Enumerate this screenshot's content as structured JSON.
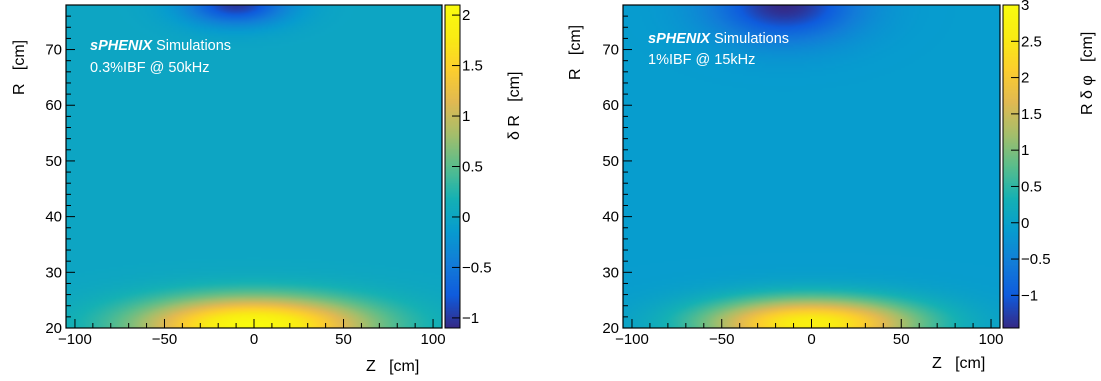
{
  "chart_data": [
    {
      "type": "heatmap",
      "title": "",
      "annotation_lines": [
        "sPHENIX Simulations",
        "0.3%IBF @ 50kHz"
      ],
      "annotation_bold": "sPHENIX",
      "annotation_rest": " Simulations",
      "xlabel": "Z   [cm]",
      "ylabel": "R   [cm]",
      "zlabel": "δ R   [cm]",
      "xlim": [
        -105,
        105
      ],
      "ylim": [
        20,
        78
      ],
      "zlim": [
        -1.1,
        2.1
      ],
      "xticks": [
        -100,
        -50,
        0,
        50,
        100
      ],
      "xtick_labels": [
        "−100",
        "−50",
        "0",
        "50",
        "100"
      ],
      "yticks": [
        20,
        30,
        40,
        50,
        60,
        70
      ],
      "ytick_labels": [
        "20",
        "30",
        "40",
        "50",
        "60",
        "70"
      ],
      "zticks": [
        -1,
        -0.5,
        0,
        0.5,
        1,
        1.5,
        2
      ],
      "ztick_labels": [
        "−1",
        "−0.5",
        "0",
        "0.5",
        "1",
        "1.5",
        "2"
      ],
      "background_value": 0,
      "features": [
        {
          "z": 0,
          "r": 20.5,
          "amplitude": 2.1,
          "sigma_z": 45,
          "sigma_r": 3.5
        },
        {
          "z": -10,
          "r": 78,
          "amplitude": -1.0,
          "sigma_z": 20,
          "sigma_r": 2.5
        }
      ],
      "colormap": "parula"
    },
    {
      "type": "heatmap",
      "title": "",
      "annotation_lines": [
        "sPHENIX Simulations",
        "1%IBF @ 15kHz"
      ],
      "annotation_bold": "sPHENIX",
      "annotation_rest": " Simulations",
      "xlabel": "Z   [cm]",
      "ylabel": "R   [cm]",
      "zlabel": "R δ φ   [cm]",
      "xlim": [
        -105,
        105
      ],
      "ylim": [
        20,
        78
      ],
      "zlim": [
        -1.45,
        3.0
      ],
      "xticks": [
        -100,
        -50,
        0,
        50,
        100
      ],
      "xtick_labels": [
        "−100",
        "−50",
        "0",
        "50",
        "100"
      ],
      "yticks": [
        20,
        30,
        40,
        50,
        60,
        70
      ],
      "ytick_labels": [
        "20",
        "30",
        "40",
        "50",
        "60",
        "70"
      ],
      "zticks": [
        -1,
        -0.5,
        0,
        0.5,
        1,
        1.5,
        2,
        2.5,
        3
      ],
      "ztick_labels": [
        "−1",
        "−0.5",
        "0",
        "0.5",
        "1",
        "1.5",
        "2",
        "2.5",
        "3"
      ],
      "background_value": -0.1,
      "features": [
        {
          "z": 0,
          "r": 20.8,
          "amplitude": 2.8,
          "sigma_z": 42,
          "sigma_r": 3.2
        },
        {
          "z": -15,
          "r": 78,
          "amplitude": -1.35,
          "sigma_z": 28,
          "sigma_r": 4.5
        }
      ],
      "colormap": "parula"
    }
  ]
}
